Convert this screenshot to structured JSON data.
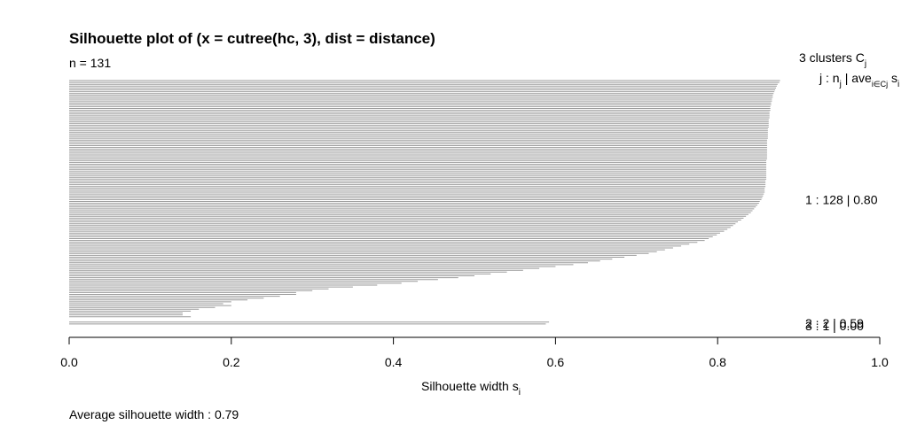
{
  "chart_data": {
    "type": "bar",
    "orientation": "horizontal",
    "title": "Silhouette plot of (x = cutree(hc, 3), dist = distance)",
    "n_label": "n = 131",
    "xlabel": "Silhouette width s",
    "xlabel_sub": "i",
    "xlim": [
      0,
      1
    ],
    "x_ticks": [
      "0.0",
      "0.2",
      "0.4",
      "0.6",
      "0.8",
      "1.0"
    ],
    "x_tick_values": [
      0,
      0.2,
      0.4,
      0.6,
      0.8,
      1.0
    ],
    "footer": "Average silhouette width :  0.79",
    "legend": {
      "heading": "3  clusters  C",
      "heading_sub": "j",
      "column_header": "j :  n",
      "column_header_sub": "j",
      "column_header_mid": " | ave",
      "column_header_sub2": "i∈Cj",
      "column_header_end": "  s",
      "column_header_sub3": "i"
    },
    "clusters": [
      {
        "label": "1 :   128  |  0.80",
        "n": 128,
        "avg": 0.8,
        "widths": [
          0.877,
          0.876,
          0.874,
          0.873,
          0.872,
          0.871,
          0.87,
          0.869,
          0.868,
          0.868,
          0.867,
          0.867,
          0.866,
          0.866,
          0.865,
          0.865,
          0.865,
          0.864,
          0.864,
          0.864,
          0.864,
          0.863,
          0.863,
          0.863,
          0.863,
          0.863,
          0.862,
          0.862,
          0.862,
          0.862,
          0.862,
          0.862,
          0.861,
          0.861,
          0.861,
          0.861,
          0.861,
          0.861,
          0.861,
          0.861,
          0.861,
          0.861,
          0.861,
          0.86,
          0.86,
          0.86,
          0.86,
          0.86,
          0.86,
          0.86,
          0.86,
          0.86,
          0.86,
          0.86,
          0.859,
          0.859,
          0.859,
          0.859,
          0.858,
          0.858,
          0.858,
          0.857,
          0.856,
          0.855,
          0.854,
          0.852,
          0.851,
          0.849,
          0.847,
          0.845,
          0.843,
          0.841,
          0.838,
          0.835,
          0.832,
          0.829,
          0.825,
          0.822,
          0.819,
          0.816,
          0.812,
          0.808,
          0.803,
          0.799,
          0.794,
          0.789,
          0.784,
          0.775,
          0.765,
          0.755,
          0.745,
          0.735,
          0.725,
          0.715,
          0.7,
          0.685,
          0.67,
          0.655,
          0.64,
          0.622,
          0.6,
          0.58,
          0.56,
          0.54,
          0.52,
          0.5,
          0.48,
          0.455,
          0.43,
          0.41,
          0.38,
          0.35,
          0.32,
          0.3,
          0.28,
          0.28,
          0.26,
          0.24,
          0.22,
          0.2,
          0.19,
          0.2,
          0.18,
          0.16,
          0.15,
          0.14,
          0.14,
          0.15
        ]
      },
      {
        "label": "2 :   2  |  0.59",
        "n": 2,
        "avg": 0.59,
        "widths": [
          0.592,
          0.588
        ]
      },
      {
        "label": "3 :   1  |  0.00",
        "n": 1,
        "avg": 0.0,
        "widths": [
          0.0
        ]
      }
    ]
  }
}
